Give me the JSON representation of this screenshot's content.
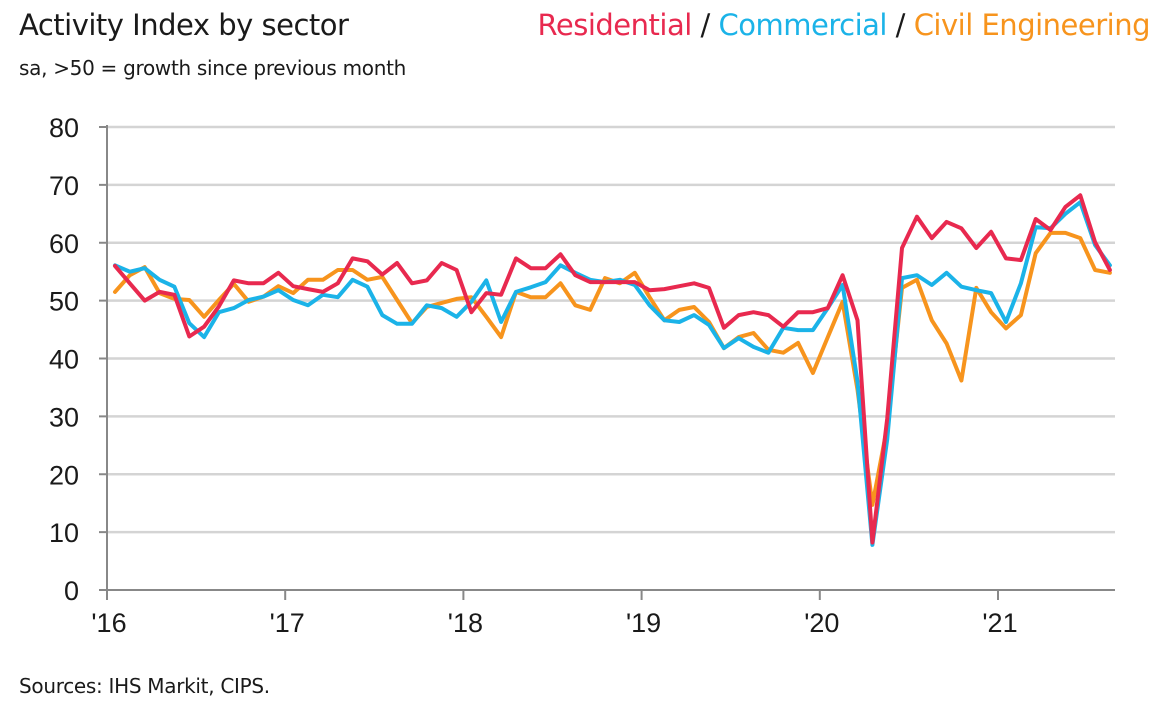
{
  "chart_data": {
    "type": "line",
    "title": "Activity Index by sector",
    "subtitle": "sa, >50 = growth since previous month",
    "source": "Sources: IHS Markit, CIPS.",
    "ylim": [
      0,
      80
    ],
    "yticks": [
      0,
      10,
      20,
      30,
      40,
      50,
      60,
      70,
      80
    ],
    "xtick_labels": [
      "'16",
      "'17",
      "'18",
      "'19",
      "'20",
      "'21"
    ],
    "grid": "horizontal",
    "legend_placement": "top-right",
    "x": [
      "2016-01",
      "2016-02",
      "2016-03",
      "2016-04",
      "2016-05",
      "2016-06",
      "2016-07",
      "2016-08",
      "2016-09",
      "2016-10",
      "2016-11",
      "2016-12",
      "2017-01",
      "2017-02",
      "2017-03",
      "2017-04",
      "2017-05",
      "2017-06",
      "2017-07",
      "2017-08",
      "2017-09",
      "2017-10",
      "2017-11",
      "2017-12",
      "2018-01",
      "2018-02",
      "2018-03",
      "2018-04",
      "2018-05",
      "2018-06",
      "2018-07",
      "2018-08",
      "2018-09",
      "2018-10",
      "2018-11",
      "2018-12",
      "2019-01",
      "2019-02",
      "2019-03",
      "2019-04",
      "2019-05",
      "2019-06",
      "2019-07",
      "2019-08",
      "2019-09",
      "2019-10",
      "2019-11",
      "2019-12",
      "2020-01",
      "2020-02",
      "2020-03",
      "2020-04",
      "2020-05",
      "2020-06",
      "2020-07",
      "2020-08",
      "2020-09",
      "2020-10",
      "2020-11",
      "2020-12",
      "2021-01",
      "2021-02",
      "2021-03",
      "2021-04",
      "2021-05",
      "2021-06",
      "2021-07",
      "2021-08"
    ],
    "series": [
      {
        "name": "Residential",
        "color": "#e8294f",
        "values": [
          56.0,
          53.0,
          50.0,
          51.5,
          51.0,
          43.8,
          45.5,
          49.0,
          53.5,
          53.0,
          53.0,
          54.8,
          52.5,
          52.0,
          51.5,
          53.0,
          57.3,
          56.8,
          54.5,
          56.5,
          53.0,
          53.5,
          56.5,
          55.3,
          48.0,
          51.3,
          51.0,
          57.3,
          55.6,
          55.6,
          58.0,
          54.4,
          53.2,
          53.2,
          53.2,
          53.2,
          51.8,
          52.0,
          52.5,
          53.0,
          52.2,
          45.3,
          47.5,
          48.0,
          47.5,
          45.5,
          48.0,
          48.0,
          48.7,
          54.4,
          46.6,
          8.2,
          29.6,
          59.1,
          64.5,
          60.8,
          63.6,
          62.5,
          59.1,
          61.9,
          57.3,
          57.0,
          64.1,
          62.2,
          66.2,
          68.2,
          60.1,
          55.3
        ]
      },
      {
        "name": "Commercial",
        "color": "#1bb3e8",
        "values": [
          56.1,
          55.0,
          55.6,
          53.6,
          52.4,
          46.1,
          43.7,
          48.0,
          48.7,
          50.1,
          50.7,
          51.8,
          50.1,
          49.2,
          51.0,
          50.6,
          53.6,
          52.4,
          47.5,
          46.0,
          46.0,
          49.2,
          48.7,
          47.2,
          49.8,
          53.5,
          46.3,
          51.5,
          52.3,
          53.2,
          56.1,
          54.8,
          53.6,
          53.2,
          53.6,
          52.7,
          49.2,
          46.6,
          46.3,
          47.5,
          45.8,
          41.8,
          43.5,
          42.0,
          41.0,
          45.3,
          44.9,
          44.9,
          48.7,
          52.7,
          36.0,
          7.8,
          26.0,
          53.9,
          54.4,
          52.7,
          54.8,
          52.4,
          51.8,
          51.3,
          46.3,
          53.0,
          62.7,
          62.5,
          65.0,
          67.0,
          59.6,
          56.1
        ]
      },
      {
        "name": "Civil Engineering",
        "color": "#f7941d",
        "values": [
          51.5,
          54.4,
          55.8,
          51.3,
          50.3,
          50.1,
          47.2,
          50.1,
          52.9,
          49.8,
          50.7,
          52.5,
          51.3,
          53.6,
          53.6,
          55.3,
          55.3,
          53.6,
          54.1,
          50.1,
          46.1,
          48.9,
          49.6,
          50.3,
          50.6,
          47.2,
          43.7,
          51.5,
          50.6,
          50.6,
          53.0,
          49.2,
          48.4,
          53.9,
          53.0,
          54.8,
          50.6,
          46.6,
          48.4,
          48.9,
          46.3,
          41.8,
          43.7,
          44.4,
          41.5,
          41.0,
          42.7,
          37.5,
          43.7,
          49.8,
          34.6,
          14.7,
          28.2,
          52.2,
          53.6,
          46.6,
          42.6,
          36.2,
          52.2,
          48.0,
          45.2,
          47.5,
          58.2,
          61.7,
          61.7,
          60.8,
          55.3,
          54.8
        ]
      }
    ]
  },
  "legend": {
    "separator": " / "
  }
}
